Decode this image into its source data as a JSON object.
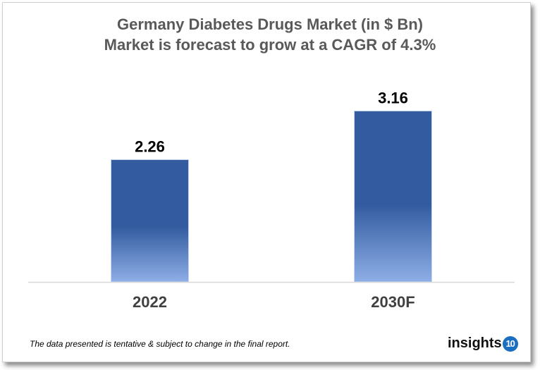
{
  "chart_data": {
    "type": "bar",
    "title": "Germany Diabetes Drugs Market (in $ Bn)",
    "subtitle": "Market is forecast to grow at a CAGR of 4.3%",
    "categories": [
      "2022",
      "2030F"
    ],
    "values": [
      2.26,
      3.16
    ],
    "data_labels": [
      "2.26",
      "3.16"
    ],
    "ylim": [
      0,
      3.7
    ],
    "grid": false,
    "legend": "none",
    "colors": {
      "bar_top": "#335ca0",
      "bar_bottom": "#8eaee6",
      "axis": "#d9d9d9"
    }
  },
  "footnote": "The data presented is tentative & subject to change in the final report.",
  "logo": {
    "text": "insights",
    "badge": "10"
  }
}
